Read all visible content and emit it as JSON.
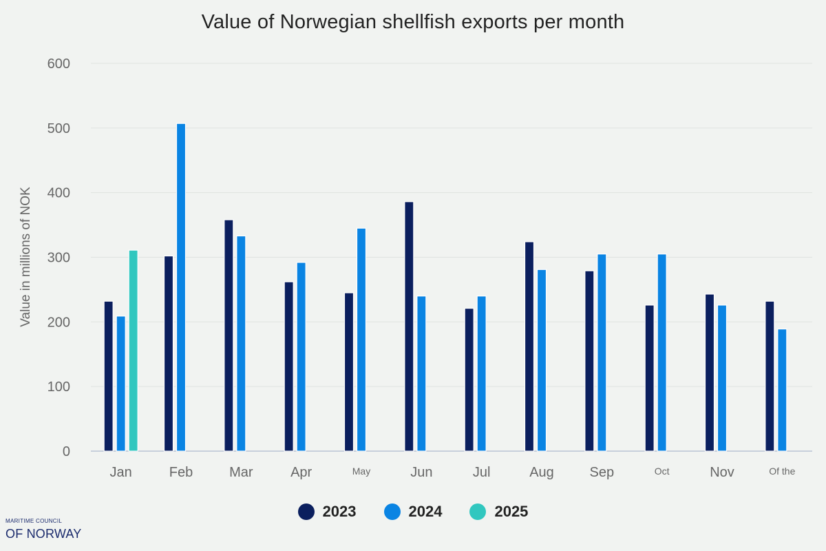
{
  "chart_data": {
    "type": "bar",
    "title": "Value of Norwegian shellfish exports per month",
    "ylabel": "Value in millions of NOK",
    "xlabel": "",
    "ylim": [
      0,
      600
    ],
    "yticks": [
      0,
      100,
      200,
      300,
      400,
      500,
      600
    ],
    "grid": true,
    "legend_position": "bottom",
    "categories": [
      "Jan",
      "Feb",
      "Mar",
      "Apr",
      "May",
      "Jun",
      "Jul",
      "Aug",
      "Sep",
      "Oct",
      "Nov",
      "Of the"
    ],
    "series": [
      {
        "name": "2023",
        "color": "#0b1f5e",
        "values": [
          232,
          302,
          358,
          262,
          245,
          386,
          221,
          324,
          279,
          226,
          243,
          232
        ]
      },
      {
        "name": "2024",
        "color": "#0a84e3",
        "values": [
          209,
          507,
          333,
          292,
          345,
          240,
          240,
          281,
          305,
          305,
          226,
          189
        ]
      },
      {
        "name": "2025",
        "color": "#31c7bf",
        "values": [
          311,
          null,
          null,
          null,
          null,
          null,
          null,
          null,
          null,
          null,
          null,
          null
        ]
      }
    ]
  },
  "footer": {
    "logo_small": "MARITIME COUNCIL",
    "logo_big": "OF NORWAY"
  }
}
